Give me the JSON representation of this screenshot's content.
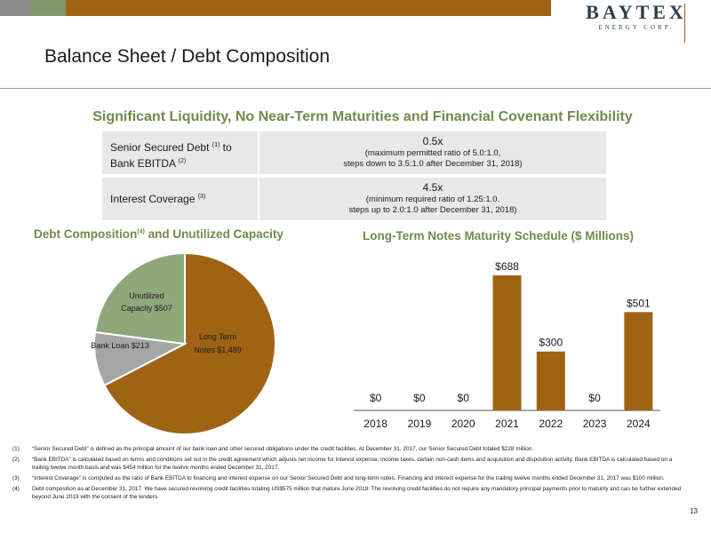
{
  "brand": {
    "name": "BAYTEX",
    "tagline": "ENERGY CORP."
  },
  "page_title": "Balance Sheet / Debt Composition",
  "subtitle": "Significant Liquidity, No Near-Term Maturities and Financial Covenant Flexibility",
  "metrics": [
    {
      "label_a": "Senior Secured Debt ",
      "sup_a": "(1)",
      "label_b": " to Bank EBITDA ",
      "sup_b": "(2)",
      "value": "0.5x",
      "note1": "(maximum permitted ratio of 5.0:1.0,",
      "note2": "steps down to 3.5:1.0 after December 31, 2018)"
    },
    {
      "label_a": "Interest Coverage ",
      "sup_a": "(3)",
      "label_b": "",
      "sup_b": "",
      "value": "4.5x",
      "note1": "(minimum required ratio of 1.25:1.0.",
      "note2": "steps up to 2.0:1.0 after December 31, 2018)"
    }
  ],
  "pie_section": {
    "title": "Debt Composition",
    "sup": "(4)",
    "title_rest": " and Unutilized Capacity"
  },
  "bar_section": {
    "title": "Long-Term Notes Maturity Schedule ($ Millions)"
  },
  "chart_data": [
    {
      "type": "pie",
      "slices": [
        {
          "label_line1": "Long Term",
          "label_line2": "Notes $1,489",
          "value": 1489,
          "color": "#9e6414"
        },
        {
          "label_line1": "Bank Loan $213",
          "label_line2": "",
          "value": 213,
          "color": "#a6a6a6"
        },
        {
          "label_line1": "Unutilized",
          "label_line2": "Capacity $507",
          "value": 507,
          "color": "#8fa87a"
        }
      ]
    },
    {
      "type": "bar",
      "categories": [
        "2018",
        "2019",
        "2020",
        "2021",
        "2022",
        "2023",
        "2024"
      ],
      "values": [
        0,
        0,
        0,
        688,
        300,
        0,
        501
      ],
      "value_labels": [
        "$0",
        "$0",
        "$0",
        "$688",
        "$300",
        "$0",
        "$501"
      ],
      "color": "#9e6414",
      "ylim": [
        0,
        688
      ]
    }
  ],
  "footnotes": [
    {
      "num": "(1)",
      "text": "“Senior Secured Debt” is defined as the principal amount of our bank loan and other secured obligations under the credit facilities. At December 31, 2017, our Senior Secured Debt totaled $228 million."
    },
    {
      "num": "(2)",
      "text": "“Bank EBITDA” is calculated based on terms and conditions set out in the credit agreement which adjusts net income for interest expense, income taxes, certain non-cash items and acquisition and disposition activity. Bank EBITDA is calculated based on a trailing twelve month basis and was $454 million for the twelve months ended December 31, 2017."
    },
    {
      "num": "(3)",
      "text": "“Interest Coverage” is computed as the ratio of Bank EBITDA to financing and interest expense on our Senior Secured Debt and long-term notes. Financing and interest expense for the trailing twelve months ended December 31, 2017 was $100 million."
    },
    {
      "num": "(4)",
      "text": "Debt composition as at December 31, 2017. We have secured revolving credit facilities totaling US$575 million that mature June 2019. The revolving credit facilities do not require any mandatory principal payments prior to maturity and can be further extended beyond June 2019 with the consent of the lenders."
    }
  ],
  "page_number": "13"
}
